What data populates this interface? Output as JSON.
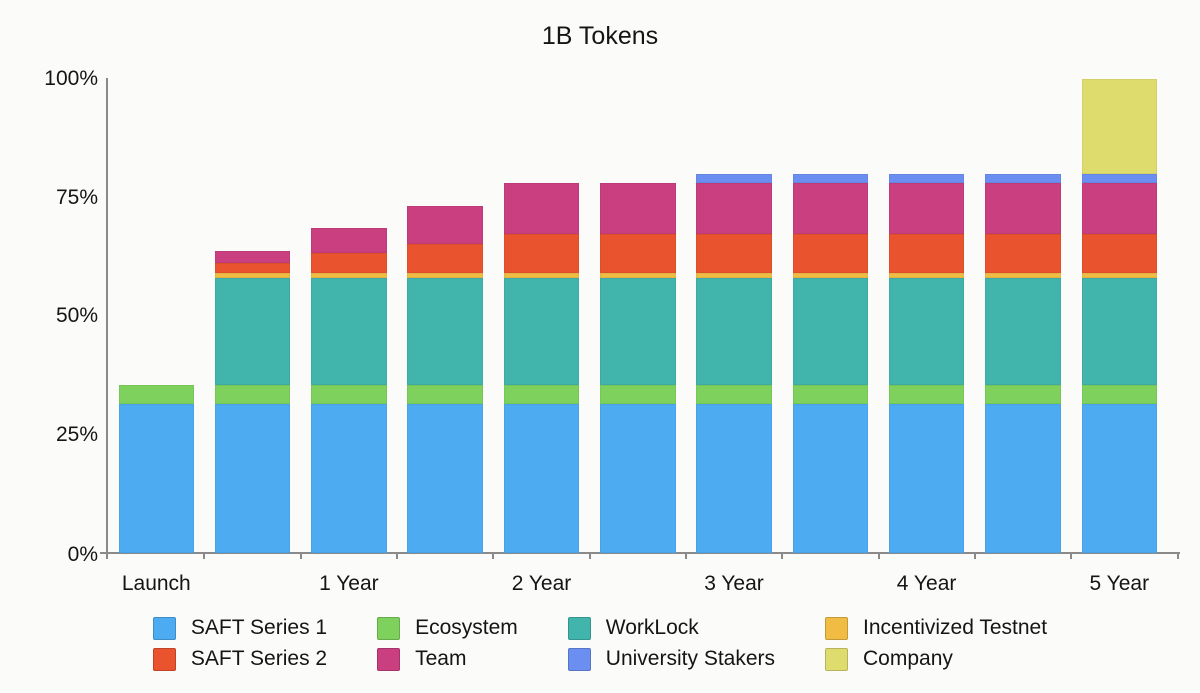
{
  "title": "1B Tokens",
  "chart_data": {
    "type": "bar",
    "stacked": true,
    "title": "1B Tokens",
    "unit": "percent of 1B tokens",
    "num_bars": 11,
    "bar_interval": "6 months",
    "ylim": [
      0,
      100
    ],
    "grid": false,
    "legend_position": "bottom",
    "y_ticks": [
      {
        "value": 0,
        "label": "0%"
      },
      {
        "value": 25,
        "label": "25%"
      },
      {
        "value": 50,
        "label": "50%"
      },
      {
        "value": 75,
        "label": "75%"
      },
      {
        "value": 100,
        "label": "100%"
      }
    ],
    "x_tick_labels": [
      {
        "bar_index": 0,
        "label": "Launch"
      },
      {
        "bar_index": 2,
        "label": "1 Year"
      },
      {
        "bar_index": 4,
        "label": "2 Year"
      },
      {
        "bar_index": 6,
        "label": "3 Year"
      },
      {
        "bar_index": 8,
        "label": "4 Year"
      },
      {
        "bar_index": 10,
        "label": "5 Year"
      }
    ],
    "series": [
      {
        "name": "SAFT Series 1",
        "color": "#4dabf2",
        "values": [
          31.5,
          31.5,
          31.5,
          31.5,
          31.5,
          31.5,
          31.5,
          31.5,
          31.5,
          31.5,
          31.5
        ]
      },
      {
        "name": "Ecosystem",
        "color": "#7ed15c",
        "values": [
          4,
          4,
          4,
          4,
          4,
          4,
          4,
          4,
          4,
          4,
          4
        ]
      },
      {
        "name": "WorkLock",
        "color": "#41b5ac",
        "values": [
          0,
          22.5,
          22.5,
          22.5,
          22.5,
          22.5,
          22.5,
          22.5,
          22.5,
          22.5,
          22.5
        ]
      },
      {
        "name": "Incentivized Testnet",
        "color": "#f0bc44",
        "values": [
          0,
          1,
          1,
          1,
          1,
          1,
          1,
          1,
          1,
          1,
          1
        ]
      },
      {
        "name": "SAFT Series 2",
        "color": "#e9532e",
        "values": [
          0,
          2.1,
          4.2,
          6.2,
          8.3,
          8.3,
          8.3,
          8.3,
          8.3,
          8.3,
          8.3
        ]
      },
      {
        "name": "Team",
        "color": "#ca3f7f",
        "values": [
          0,
          2.7,
          5.4,
          8.0,
          10.7,
          10.7,
          10.7,
          10.7,
          10.7,
          10.7,
          10.7
        ]
      },
      {
        "name": "University Stakers",
        "color": "#6b8ff0",
        "values": [
          0,
          0,
          0,
          0,
          0,
          0,
          2,
          2,
          2,
          2,
          2
        ]
      },
      {
        "name": "Company",
        "color": "#dfdc6e",
        "values": [
          0,
          0,
          0,
          0,
          0,
          0,
          0,
          0,
          0,
          0,
          20
        ]
      }
    ],
    "bar_totals": [
      35.5,
      63.8,
      68.7,
      73.2,
      78.0,
      78.0,
      80.0,
      80.0,
      80.0,
      80.0,
      100.0
    ],
    "legend_rows": [
      [
        "SAFT Series 1",
        "Ecosystem",
        "WorkLock",
        "Incentivized Testnet"
      ],
      [
        "SAFT Series 2",
        "Team",
        "University Stakers",
        "Company"
      ]
    ]
  }
}
